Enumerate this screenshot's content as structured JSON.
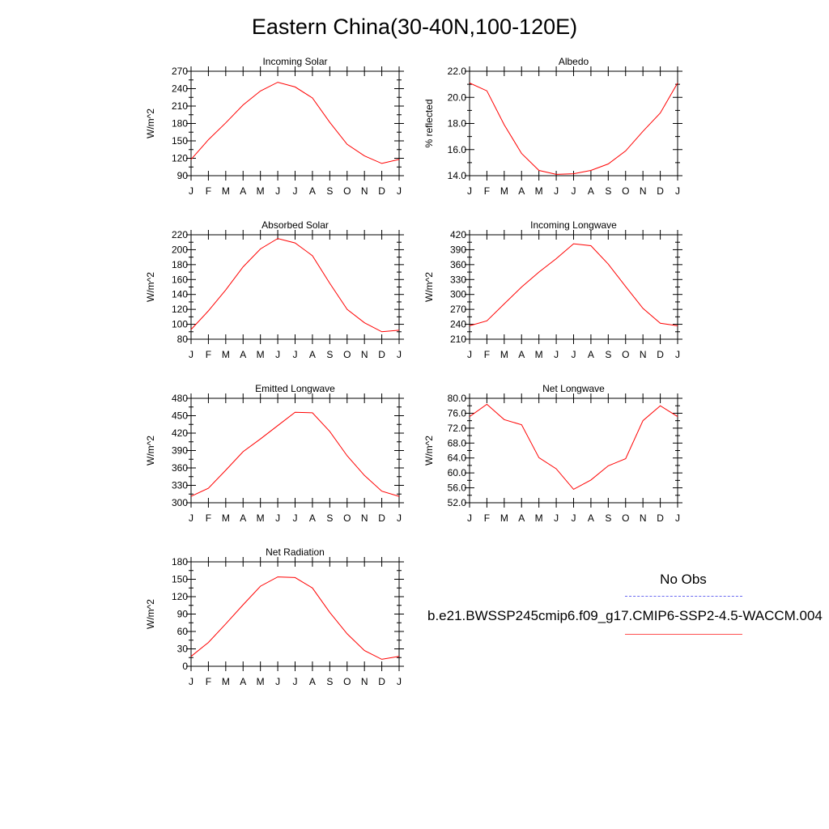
{
  "title": "Eastern China(30-40N,100-120E)",
  "legend": {
    "obs_label": "No Obs",
    "obs_color": "#6a6af0",
    "model_label": "b.e21.BWSSP245cmip6.f09_g17.CMIP6-SSP2-4.5-WACCM.004",
    "model_color": "#ff0000"
  },
  "chart_data": [
    {
      "type": "line",
      "title": "Incoming Solar",
      "ylabel": "W/m^2",
      "categories": [
        "J",
        "F",
        "M",
        "A",
        "M",
        "J",
        "J",
        "A",
        "S",
        "O",
        "N",
        "D",
        "J"
      ],
      "yticks": [
        "90",
        "120",
        "150",
        "180",
        "210",
        "240",
        "270"
      ],
      "ylim": [
        90,
        270
      ],
      "series": [
        {
          "values": [
            118,
            152,
            181,
            212,
            236,
            251,
            243,
            224,
            182,
            144,
            124,
            111,
            118
          ]
        }
      ]
    },
    {
      "type": "line",
      "title": "Albedo",
      "ylabel": "% reflected",
      "categories": [
        "J",
        "F",
        "M",
        "A",
        "M",
        "J",
        "J",
        "A",
        "S",
        "O",
        "N",
        "D",
        "J"
      ],
      "yticks": [
        "14.0",
        "16.0",
        "18.0",
        "20.0",
        "22.0"
      ],
      "ylim": [
        14,
        22
      ],
      "series": [
        {
          "values": [
            21.1,
            20.5,
            17.9,
            15.7,
            14.4,
            14.1,
            14.15,
            14.4,
            14.9,
            15.9,
            17.4,
            18.8,
            21.1
          ]
        }
      ]
    },
    {
      "type": "line",
      "title": "Absorbed Solar",
      "ylabel": "W/m^2",
      "categories": [
        "J",
        "F",
        "M",
        "A",
        "M",
        "J",
        "J",
        "A",
        "S",
        "O",
        "N",
        "D",
        "J"
      ],
      "yticks": [
        "80",
        "100",
        "120",
        "140",
        "160",
        "180",
        "200",
        "220"
      ],
      "ylim": [
        80,
        220
      ],
      "series": [
        {
          "values": [
            93,
            118,
            146,
            177,
            201,
            215,
            209,
            192,
            155,
            120,
            102,
            90,
            92
          ]
        }
      ]
    },
    {
      "type": "line",
      "title": "Incoming Longwave",
      "ylabel": "W/m^2",
      "categories": [
        "J",
        "F",
        "M",
        "A",
        "M",
        "J",
        "J",
        "A",
        "S",
        "O",
        "N",
        "D",
        "J"
      ],
      "yticks": [
        "210",
        "240",
        "270",
        "300",
        "330",
        "360",
        "390",
        "420"
      ],
      "ylim": [
        210,
        420
      ],
      "series": [
        {
          "values": [
            237,
            247,
            281,
            315,
            345,
            372,
            402,
            398,
            361,
            316,
            272,
            242,
            237
          ]
        }
      ]
    },
    {
      "type": "line",
      "title": "Emitted Longwave",
      "ylabel": "W/m^2",
      "categories": [
        "J",
        "F",
        "M",
        "A",
        "M",
        "J",
        "J",
        "A",
        "S",
        "O",
        "N",
        "D",
        "J"
      ],
      "yticks": [
        "300",
        "330",
        "360",
        "390",
        "420",
        "450",
        "480"
      ],
      "ylim": [
        300,
        480
      ],
      "series": [
        {
          "values": [
            311,
            325,
            356,
            388,
            410,
            433,
            456,
            455,
            423,
            381,
            347,
            320,
            311
          ]
        }
      ]
    },
    {
      "type": "line",
      "title": "Net Longwave",
      "ylabel": "W/m^2",
      "categories": [
        "J",
        "F",
        "M",
        "A",
        "M",
        "J",
        "J",
        "A",
        "S",
        "O",
        "N",
        "D",
        "J"
      ],
      "yticks": [
        "52.0",
        "56.0",
        "60.0",
        "64.0",
        "68.0",
        "72.0",
        "76.0",
        "80.0"
      ],
      "ylim": [
        52,
        80
      ],
      "series": [
        {
          "values": [
            75.1,
            78.4,
            74.3,
            72.9,
            64.1,
            61.1,
            55.6,
            58.1,
            61.9,
            63.8,
            74.0,
            78.0,
            75.1
          ]
        }
      ]
    },
    {
      "type": "line",
      "title": "Net Radiation",
      "ylabel": "W/m^2",
      "categories": [
        "J",
        "F",
        "M",
        "A",
        "M",
        "J",
        "J",
        "A",
        "S",
        "O",
        "N",
        "D",
        "J"
      ],
      "yticks": [
        "0",
        "30",
        "60",
        "90",
        "120",
        "150",
        "180"
      ],
      "ylim": [
        0,
        180
      ],
      "series": [
        {
          "values": [
            17,
            41,
            73,
            106,
            138,
            154,
            153,
            135,
            93,
            56,
            27,
            12,
            17
          ]
        }
      ]
    }
  ]
}
